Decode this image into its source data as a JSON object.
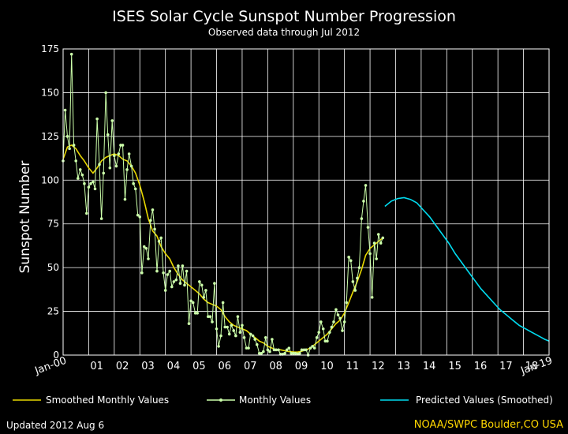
{
  "chart_data": {
    "type": "line",
    "title": "ISES Solar Cycle Sunspot Number Progression",
    "subtitle": "Observed data through Jul 2012",
    "ylabel": "Sunspot Number",
    "xlabel": "",
    "ylim": [
      0,
      175
    ],
    "yticks": [
      0,
      25,
      50,
      75,
      100,
      125,
      150,
      175
    ],
    "xlim": [
      2000.0,
      2019.0
    ],
    "xticks": [
      {
        "value": 2000,
        "label": "Jan-00"
      },
      {
        "value": 2001,
        "label": "01"
      },
      {
        "value": 2002,
        "label": "02"
      },
      {
        "value": 2003,
        "label": "03"
      },
      {
        "value": 2004,
        "label": "04"
      },
      {
        "value": 2005,
        "label": "05"
      },
      {
        "value": 2006,
        "label": "06"
      },
      {
        "value": 2007,
        "label": "07"
      },
      {
        "value": 2008,
        "label": "08"
      },
      {
        "value": 2009,
        "label": "09"
      },
      {
        "value": 2010,
        "label": "10"
      },
      {
        "value": 2011,
        "label": "11"
      },
      {
        "value": 2012,
        "label": "12"
      },
      {
        "value": 2013,
        "label": "13"
      },
      {
        "value": 2014,
        "label": "14"
      },
      {
        "value": 2015,
        "label": "15"
      },
      {
        "value": 2016,
        "label": "16"
      },
      {
        "value": 2017,
        "label": "17"
      },
      {
        "value": 2018,
        "label": "18"
      },
      {
        "value": 2019,
        "label": "Jan-19"
      }
    ],
    "grid": true,
    "series": [
      {
        "name": "Smoothed Monthly Values",
        "color": "#e8d800",
        "style": "line",
        "points": [
          [
            2000.0,
            112
          ],
          [
            2000.17,
            119
          ],
          [
            2000.33,
            120
          ],
          [
            2000.5,
            118
          ],
          [
            2000.67,
            114
          ],
          [
            2000.83,
            111
          ],
          [
            2001.0,
            107
          ],
          [
            2001.17,
            104
          ],
          [
            2001.33,
            107
          ],
          [
            2001.5,
            111
          ],
          [
            2001.67,
            113
          ],
          [
            2001.83,
            114
          ],
          [
            2002.0,
            115
          ],
          [
            2002.17,
            114
          ],
          [
            2002.33,
            112
          ],
          [
            2002.5,
            111
          ],
          [
            2002.67,
            108
          ],
          [
            2002.83,
            104
          ],
          [
            2003.0,
            97
          ],
          [
            2003.17,
            88
          ],
          [
            2003.33,
            78
          ],
          [
            2003.5,
            71
          ],
          [
            2003.67,
            68
          ],
          [
            2003.83,
            62
          ],
          [
            2004.0,
            58
          ],
          [
            2004.17,
            55
          ],
          [
            2004.33,
            50
          ],
          [
            2004.5,
            46
          ],
          [
            2004.67,
            43
          ],
          [
            2004.83,
            41
          ],
          [
            2005.0,
            39
          ],
          [
            2005.17,
            37
          ],
          [
            2005.33,
            35
          ],
          [
            2005.5,
            32
          ],
          [
            2005.67,
            30
          ],
          [
            2005.83,
            29
          ],
          [
            2006.0,
            28
          ],
          [
            2006.17,
            26
          ],
          [
            2006.33,
            22
          ],
          [
            2006.5,
            19
          ],
          [
            2006.67,
            17
          ],
          [
            2006.83,
            16
          ],
          [
            2007.0,
            15
          ],
          [
            2007.17,
            14
          ],
          [
            2007.33,
            12
          ],
          [
            2007.5,
            10
          ],
          [
            2007.67,
            8
          ],
          [
            2007.83,
            7
          ],
          [
            2008.0,
            5
          ],
          [
            2008.17,
            4
          ],
          [
            2008.33,
            3
          ],
          [
            2008.5,
            3
          ],
          [
            2008.67,
            2.5
          ],
          [
            2008.83,
            2
          ],
          [
            2009.0,
            1.8
          ],
          [
            2009.17,
            1.7
          ],
          [
            2009.33,
            2.2
          ],
          [
            2009.5,
            3
          ],
          [
            2009.67,
            4
          ],
          [
            2009.83,
            6
          ],
          [
            2010.0,
            8
          ],
          [
            2010.17,
            10
          ],
          [
            2010.33,
            12
          ],
          [
            2010.5,
            15
          ],
          [
            2010.67,
            18
          ],
          [
            2010.83,
            20
          ],
          [
            2011.0,
            24
          ],
          [
            2011.17,
            30
          ],
          [
            2011.33,
            36
          ],
          [
            2011.5,
            42
          ],
          [
            2011.67,
            49
          ],
          [
            2011.83,
            57
          ],
          [
            2012.0,
            61
          ],
          [
            2012.17,
            63
          ],
          [
            2012.33,
            65
          ],
          [
            2012.5,
            67
          ]
        ]
      },
      {
        "name": "Monthly Values",
        "color": "#ccffaa",
        "style": "line-markers",
        "points": [
          [
            2000.0,
            111
          ],
          [
            2000.08,
            140
          ],
          [
            2000.17,
            125
          ],
          [
            2000.25,
            118
          ],
          [
            2000.33,
            172
          ],
          [
            2000.42,
            120
          ],
          [
            2000.5,
            111
          ],
          [
            2000.58,
            101
          ],
          [
            2000.67,
            106
          ],
          [
            2000.75,
            103
          ],
          [
            2000.83,
            98
          ],
          [
            2000.92,
            81
          ],
          [
            2001.0,
            96
          ],
          [
            2001.08,
            98
          ],
          [
            2001.17,
            99
          ],
          [
            2001.25,
            95
          ],
          [
            2001.33,
            135
          ],
          [
            2001.42,
            109
          ],
          [
            2001.5,
            78
          ],
          [
            2001.58,
            104
          ],
          [
            2001.67,
            150
          ],
          [
            2001.75,
            126
          ],
          [
            2001.83,
            107
          ],
          [
            2001.92,
            134
          ],
          [
            2002.0,
            114
          ],
          [
            2002.08,
            108
          ],
          [
            2002.17,
            115
          ],
          [
            2002.25,
            120
          ],
          [
            2002.33,
            120
          ],
          [
            2002.42,
            89
          ],
          [
            2002.5,
            106
          ],
          [
            2002.58,
            115
          ],
          [
            2002.67,
            108
          ],
          [
            2002.75,
            98
          ],
          [
            2002.83,
            95
          ],
          [
            2002.92,
            80
          ],
          [
            2003.0,
            79
          ],
          [
            2003.08,
            47
          ],
          [
            2003.17,
            62
          ],
          [
            2003.25,
            61
          ],
          [
            2003.33,
            55
          ],
          [
            2003.42,
            77
          ],
          [
            2003.5,
            83
          ],
          [
            2003.58,
            72
          ],
          [
            2003.67,
            48
          ],
          [
            2003.75,
            65
          ],
          [
            2003.83,
            67
          ],
          [
            2003.92,
            47
          ],
          [
            2004.0,
            37
          ],
          [
            2004.08,
            46
          ],
          [
            2004.17,
            48
          ],
          [
            2004.25,
            39
          ],
          [
            2004.33,
            42
          ],
          [
            2004.42,
            43
          ],
          [
            2004.5,
            51
          ],
          [
            2004.58,
            41
          ],
          [
            2004.67,
            51
          ],
          [
            2004.75,
            40
          ],
          [
            2004.83,
            48
          ],
          [
            2004.92,
            18
          ],
          [
            2005.0,
            31
          ],
          [
            2005.08,
            30
          ],
          [
            2005.17,
            24
          ],
          [
            2005.25,
            24
          ],
          [
            2005.33,
            42
          ],
          [
            2005.42,
            40
          ],
          [
            2005.5,
            33
          ],
          [
            2005.58,
            37
          ],
          [
            2005.67,
            22
          ],
          [
            2005.75,
            22
          ],
          [
            2005.83,
            19
          ],
          [
            2005.92,
            41
          ],
          [
            2006.0,
            15
          ],
          [
            2006.08,
            5
          ],
          [
            2006.17,
            11
          ],
          [
            2006.25,
            30
          ],
          [
            2006.33,
            16
          ],
          [
            2006.42,
            16
          ],
          [
            2006.5,
            12
          ],
          [
            2006.58,
            17
          ],
          [
            2006.67,
            14
          ],
          [
            2006.75,
            11
          ],
          [
            2006.83,
            22
          ],
          [
            2006.92,
            13
          ],
          [
            2007.0,
            17
          ],
          [
            2007.08,
            10
          ],
          [
            2007.17,
            4
          ],
          [
            2007.25,
            4
          ],
          [
            2007.33,
            12
          ],
          [
            2007.42,
            11
          ],
          [
            2007.5,
            9
          ],
          [
            2007.58,
            6
          ],
          [
            2007.67,
            1
          ],
          [
            2007.75,
            1
          ],
          [
            2007.83,
            2
          ],
          [
            2007.92,
            10
          ],
          [
            2008.0,
            3
          ],
          [
            2008.08,
            2
          ],
          [
            2008.17,
            9
          ],
          [
            2008.25,
            3
          ],
          [
            2008.33,
            3
          ],
          [
            2008.42,
            3
          ],
          [
            2008.5,
            0.5
          ],
          [
            2008.58,
            0.5
          ],
          [
            2008.67,
            1
          ],
          [
            2008.75,
            3
          ],
          [
            2008.83,
            4
          ],
          [
            2008.92,
            1
          ],
          [
            2009.0,
            1
          ],
          [
            2009.08,
            1
          ],
          [
            2009.17,
            0.7
          ],
          [
            2009.25,
            1
          ],
          [
            2009.33,
            3
          ],
          [
            2009.42,
            3
          ],
          [
            2009.5,
            3
          ],
          [
            2009.58,
            0
          ],
          [
            2009.67,
            4
          ],
          [
            2009.75,
            5
          ],
          [
            2009.83,
            4
          ],
          [
            2009.92,
            10
          ],
          [
            2010.0,
            13
          ],
          [
            2010.08,
            19
          ],
          [
            2010.17,
            15
          ],
          [
            2010.25,
            8
          ],
          [
            2010.33,
            8
          ],
          [
            2010.42,
            13
          ],
          [
            2010.5,
            16
          ],
          [
            2010.58,
            19
          ],
          [
            2010.67,
            26
          ],
          [
            2010.75,
            23
          ],
          [
            2010.83,
            21
          ],
          [
            2010.92,
            14
          ],
          [
            2011.0,
            19
          ],
          [
            2011.08,
            30
          ],
          [
            2011.17,
            56
          ],
          [
            2011.25,
            54
          ],
          [
            2011.33,
            42
          ],
          [
            2011.42,
            37
          ],
          [
            2011.5,
            44
          ],
          [
            2011.58,
            50
          ],
          [
            2011.67,
            78
          ],
          [
            2011.75,
            88
          ],
          [
            2011.83,
            97
          ],
          [
            2011.92,
            73
          ],
          [
            2012.0,
            58
          ],
          [
            2012.08,
            33
          ],
          [
            2012.17,
            64
          ],
          [
            2012.25,
            55
          ],
          [
            2012.33,
            69
          ],
          [
            2012.42,
            64
          ],
          [
            2012.5,
            67
          ]
        ]
      },
      {
        "name": "Predicted Values (Smoothed)",
        "color": "#00dcf0",
        "style": "line",
        "points": [
          [
            2012.58,
            85
          ],
          [
            2012.83,
            88
          ],
          [
            2013.08,
            89.5
          ],
          [
            2013.33,
            90
          ],
          [
            2013.58,
            89
          ],
          [
            2013.83,
            87
          ],
          [
            2014.08,
            83
          ],
          [
            2014.33,
            79
          ],
          [
            2014.58,
            74
          ],
          [
            2014.83,
            69
          ],
          [
            2015.08,
            64
          ],
          [
            2015.33,
            58
          ],
          [
            2015.58,
            53
          ],
          [
            2015.83,
            48
          ],
          [
            2016.08,
            43
          ],
          [
            2016.33,
            38
          ],
          [
            2016.58,
            34
          ],
          [
            2016.83,
            30
          ],
          [
            2017.08,
            26
          ],
          [
            2017.33,
            23
          ],
          [
            2017.58,
            20
          ],
          [
            2017.83,
            17
          ],
          [
            2018.08,
            15
          ],
          [
            2018.33,
            13
          ],
          [
            2018.58,
            11
          ],
          [
            2018.83,
            9
          ],
          [
            2019.0,
            8
          ]
        ]
      }
    ],
    "legend": [
      {
        "label": "Smoothed Monthly Values",
        "color": "#e8d800",
        "marker": false
      },
      {
        "label": "Monthly Values",
        "color": "#ccffaa",
        "marker": true
      },
      {
        "label": "Predicted Values (Smoothed)",
        "color": "#00dcf0",
        "marker": false
      }
    ],
    "legend_placement": "bottom"
  },
  "footer": {
    "updated": "Updated 2012 Aug  6",
    "credit": "NOAA/SWPC Boulder,CO USA"
  }
}
